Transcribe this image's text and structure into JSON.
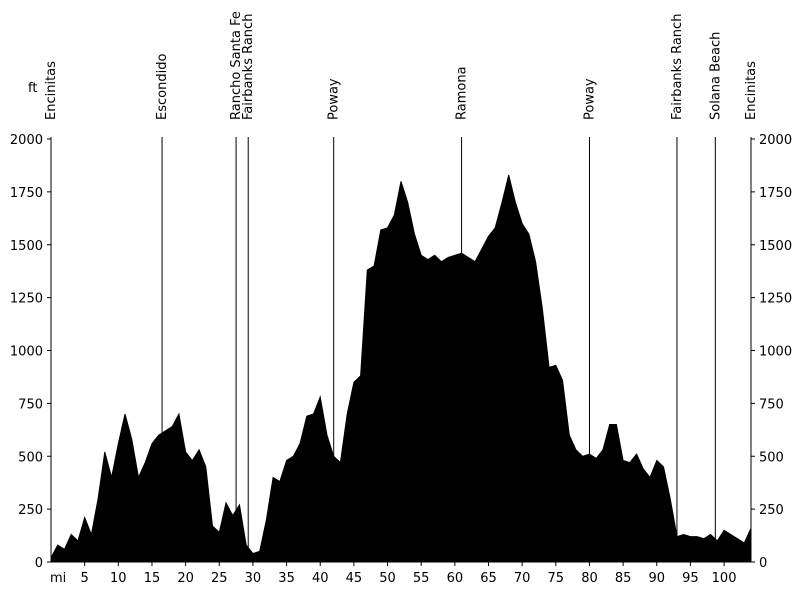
{
  "chart_data": {
    "type": "area",
    "x_unit": "mi",
    "y_unit": "ft",
    "xlim": [
      0,
      104
    ],
    "ylim": [
      0,
      2000
    ],
    "x_ticks": [
      5,
      10,
      15,
      20,
      25,
      30,
      35,
      40,
      45,
      50,
      55,
      60,
      65,
      70,
      75,
      80,
      85,
      90,
      95,
      100
    ],
    "y_ticks": [
      0,
      250,
      500,
      750,
      1000,
      1250,
      1500,
      1750,
      2000
    ],
    "grid": false,
    "fill_color": "#000000",
    "waypoints": [
      {
        "name": "Encinitas",
        "mile": 0
      },
      {
        "name": "Escondido",
        "mile": 16.5
      },
      {
        "name": "Rancho Santa Fe",
        "mile": 27.5
      },
      {
        "name": "Fairbanks Ranch",
        "mile": 29.3
      },
      {
        "name": "Poway",
        "mile": 42
      },
      {
        "name": "Ramona",
        "mile": 61
      },
      {
        "name": "Poway",
        "mile": 80
      },
      {
        "name": "Fairbanks Ranch",
        "mile": 93
      },
      {
        "name": "Solana Beach",
        "mile": 98.7
      },
      {
        "name": "Encinitas",
        "mile": 104
      }
    ],
    "series": [
      {
        "x": [
          0,
          1,
          2,
          3,
          4,
          5,
          6,
          7,
          8,
          9,
          10,
          11,
          12,
          13,
          14,
          15,
          16,
          17,
          18,
          19,
          20,
          21,
          22,
          23,
          24,
          25,
          26,
          27,
          28,
          29,
          30,
          31,
          32,
          33,
          34,
          35,
          36,
          37,
          38,
          39,
          40,
          41,
          42,
          43,
          44,
          45,
          46,
          47,
          48,
          49,
          50,
          51,
          52,
          53,
          54,
          55,
          56,
          57,
          58,
          59,
          60,
          61,
          62,
          63,
          64,
          65,
          66,
          67,
          68,
          69,
          70,
          71,
          72,
          73,
          74,
          75,
          76,
          77,
          78,
          79,
          80,
          81,
          82,
          83,
          84,
          85,
          86,
          87,
          88,
          89,
          90,
          91,
          92,
          93,
          94,
          95,
          96,
          97,
          98,
          99,
          100,
          101,
          102,
          103,
          104
        ],
        "values": [
          20,
          80,
          60,
          130,
          100,
          210,
          130,
          300,
          520,
          400,
          560,
          700,
          580,
          400,
          470,
          560,
          600,
          620,
          640,
          700,
          520,
          480,
          530,
          450,
          170,
          140,
          280,
          220,
          270,
          80,
          40,
          50,
          200,
          400,
          380,
          480,
          500,
          560,
          690,
          700,
          780,
          600,
          500,
          470,
          700,
          850,
          880,
          1380,
          1400,
          1570,
          1580,
          1640,
          1800,
          1700,
          1550,
          1450,
          1430,
          1450,
          1420,
          1440,
          1450,
          1460,
          1440,
          1420,
          1480,
          1540,
          1580,
          1700,
          1830,
          1700,
          1600,
          1550,
          1420,
          1200,
          920,
          930,
          860,
          600,
          530,
          500,
          510,
          490,
          530,
          650,
          650,
          480,
          470,
          510,
          440,
          400,
          480,
          450,
          300,
          120,
          130,
          120,
          120,
          110,
          130,
          100,
          150,
          130,
          110,
          90,
          160
        ]
      }
    ]
  }
}
